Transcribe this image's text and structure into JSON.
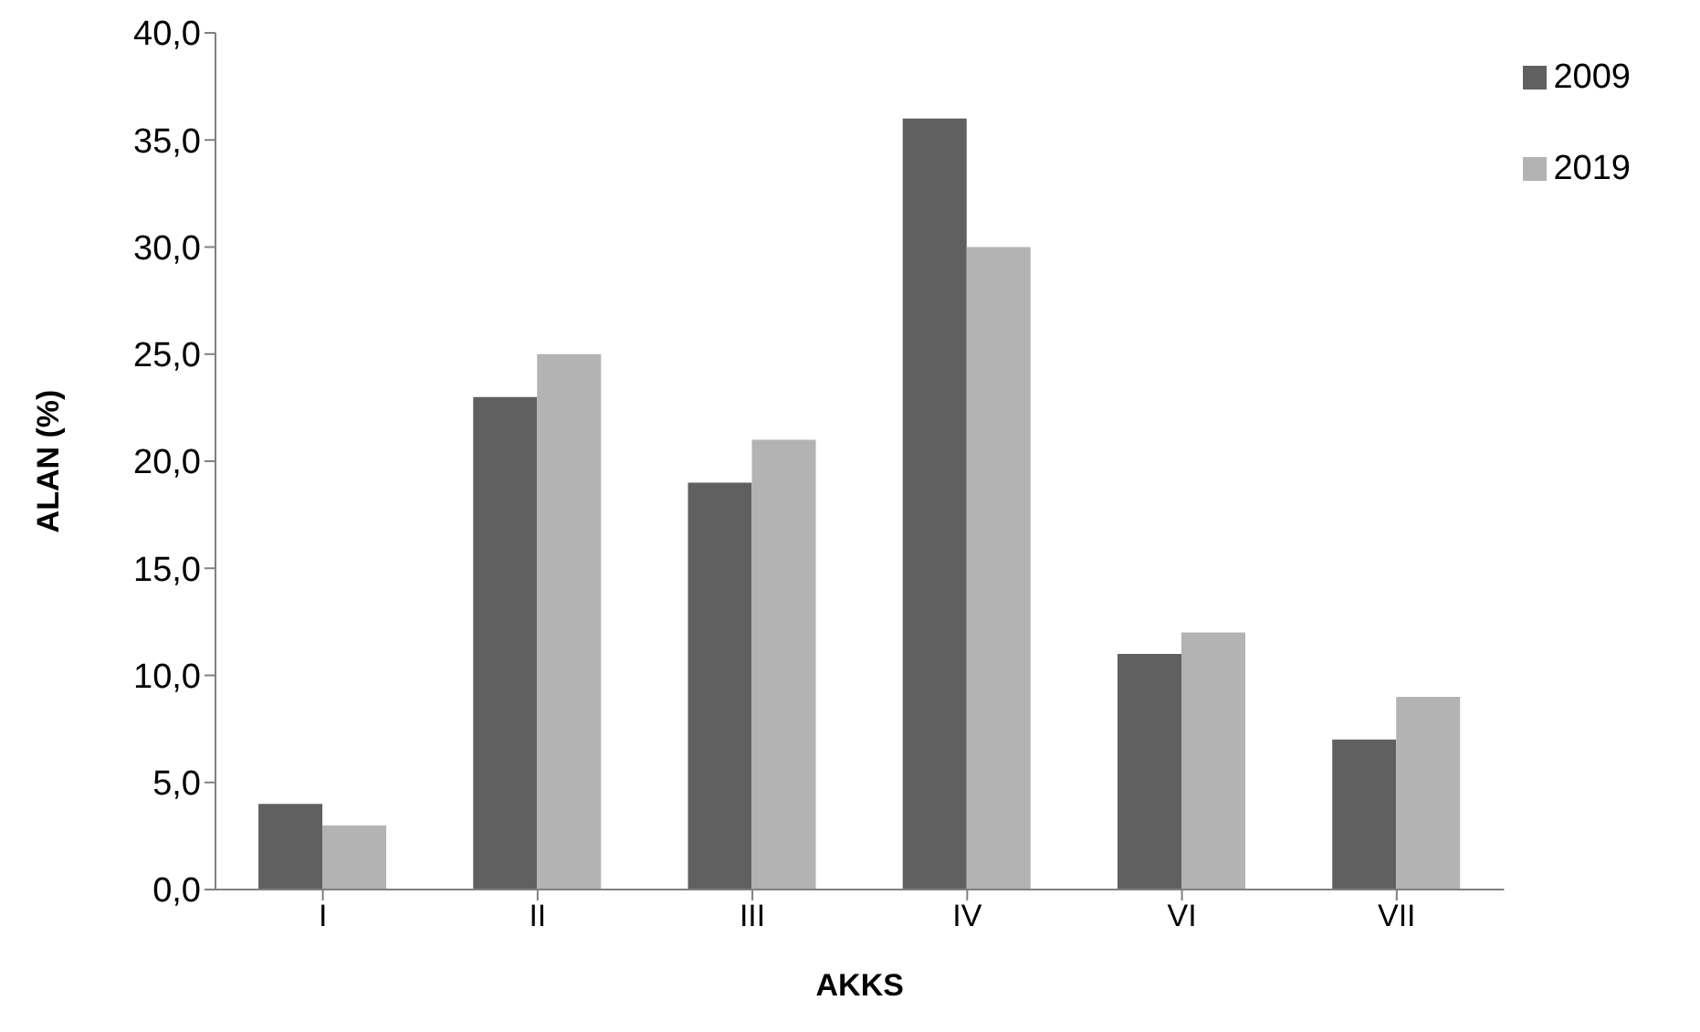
{
  "chart_data": {
    "type": "bar",
    "xlabel": "AKKS",
    "ylabel": "ALAN (%)",
    "categories": [
      "I",
      "II",
      "III",
      "IV",
      "VI",
      "VII"
    ],
    "series": [
      {
        "name": "2009",
        "color": "#606060",
        "values": [
          4,
          23,
          19,
          36,
          11,
          7
        ]
      },
      {
        "name": "2019",
        "color": "#b3b3b3",
        "values": [
          3,
          25,
          21,
          30,
          12,
          9
        ]
      }
    ],
    "ylim": [
      0,
      40
    ],
    "yticks": [
      {
        "value": 0,
        "label": "0,0"
      },
      {
        "value": 5,
        "label": "5,0"
      },
      {
        "value": 10,
        "label": "10,0"
      },
      {
        "value": 15,
        "label": "15,0"
      },
      {
        "value": 20,
        "label": "20,0"
      },
      {
        "value": 25,
        "label": "25,0"
      },
      {
        "value": 30,
        "label": "30,0"
      },
      {
        "value": 35,
        "label": "35,0"
      },
      {
        "value": 40,
        "label": "40,0"
      }
    ],
    "grid": false,
    "legend": "top right"
  }
}
